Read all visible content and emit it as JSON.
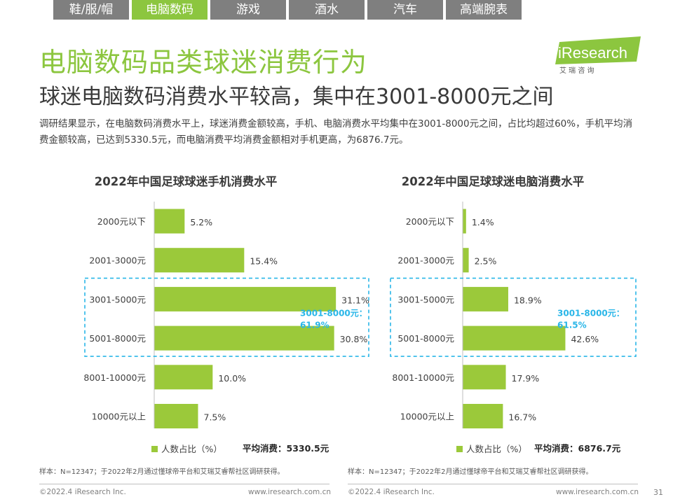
{
  "tabs": [
    {
      "label": "鞋/服/帽",
      "active": false
    },
    {
      "label": "电脑数码",
      "active": true
    },
    {
      "label": "游戏",
      "active": false
    },
    {
      "label": "酒水",
      "active": false
    },
    {
      "label": "汽车",
      "active": false
    },
    {
      "label": "高端腕表",
      "active": false
    }
  ],
  "header": {
    "title": "电脑数码品类球迷消费行为",
    "subtitle": "球迷电脑数码消费水平较高，集中在3001-8000元之间",
    "description": "调研结果显示，在电脑数码消费水平上，球迷消费金额较高，手机、电脑消费水平均集中在3001-8000元之间，占比均超过60%，手机平均消费金额较高，已达到5330.5元，而电脑消费平均消费金额相对手机更高，为6876.7元。"
  },
  "logo": {
    "brand": "iResearch",
    "sub": "艾 瑞 咨 询"
  },
  "colors": {
    "accent": "#8cc63f",
    "bar": "#9bc93a",
    "highlight": "#29b6e8"
  },
  "chart_data": [
    {
      "type": "bar",
      "orientation": "horizontal",
      "title": "2022年中国足球球迷手机消费水平",
      "categories": [
        "2000元以下",
        "2001-3000元",
        "3001-5000元",
        "5001-8000元",
        "8001-10000元",
        "10000元以上"
      ],
      "series": [
        {
          "name": "人数占比（%）",
          "values": [
            5.2,
            15.4,
            31.1,
            30.8,
            10.0,
            7.5
          ]
        }
      ],
      "value_labels": [
        "5.2%",
        "15.4%",
        "31.1%",
        "30.8%",
        "10.0%",
        "7.5%"
      ],
      "xlim": [
        0,
        45
      ],
      "highlight": {
        "categories": [
          "3001-5000元",
          "5001-8000元"
        ],
        "label_line1": "3001-8000元：",
        "label_line2": "61.9%"
      },
      "legend": "人数占比（%）",
      "average_label": "平均消费：5330.5元"
    },
    {
      "type": "bar",
      "orientation": "horizontal",
      "title": "2022年中国足球球迷电脑消费水平",
      "categories": [
        "2000元以下",
        "2001-3000元",
        "3001-5000元",
        "5001-8000元",
        "8001-10000元",
        "10000元以上"
      ],
      "series": [
        {
          "name": "人数占比（%）",
          "values": [
            1.4,
            2.5,
            18.9,
            42.6,
            17.9,
            16.7
          ]
        }
      ],
      "value_labels": [
        "1.4%",
        "2.5%",
        "18.9%",
        "42.6%",
        "17.9%",
        "16.7%"
      ],
      "xlim": [
        0,
        80
      ],
      "highlight": {
        "categories": [
          "3001-5000元",
          "5001-8000元"
        ],
        "label_line1": "3001-8000元：",
        "label_line2": "61.5%"
      },
      "legend": "人数占比（%）",
      "average_label": "平均消费：6876.7元"
    }
  ],
  "footer": {
    "note_left": "样本：N=12347；于2022年2月通过懂球帝平台和艾瑞艾睿帮社区调研获得。",
    "note_right": "样本：N=12347；于2022年2月通过懂球帝平台和艾瑞艾睿帮社区调研获得。",
    "copyright_left": "©2022.4 iResearch Inc.",
    "url_left": "www.iresearch.com.cn",
    "copyright_right": "©2022.4 iResearch Inc.",
    "url_right": "www.iresearch.com.cn",
    "page": "31"
  }
}
